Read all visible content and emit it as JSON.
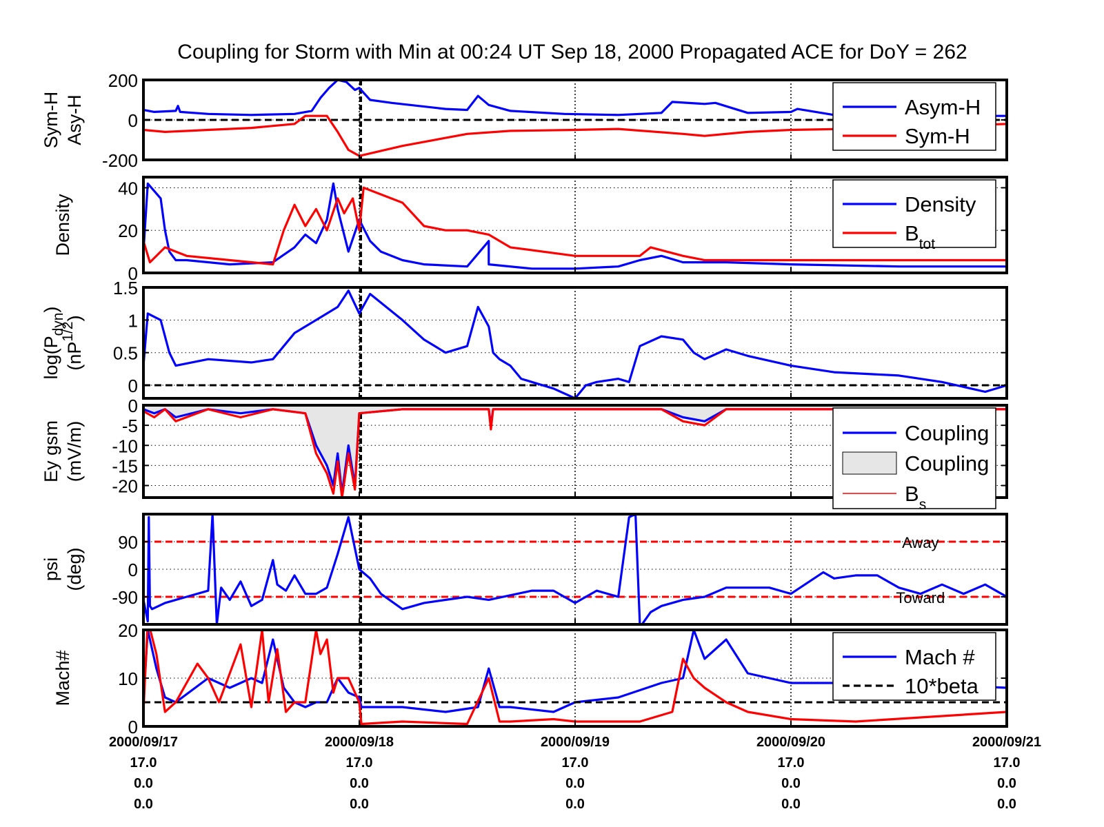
{
  "title": "Coupling for Storm with Min at 00:24 UT Sep 18, 2000  Propagated ACE for DoY = 262",
  "x_axis": {
    "tick_dates": [
      "2000/09/17",
      "2000/09/18",
      "2000/09/19",
      "2000/09/20",
      "2000/09/21"
    ],
    "tick_row2": [
      "17.0",
      "17.0",
      "17.0",
      "17.0",
      "17.0"
    ],
    "tick_row3": [
      "0.0",
      "0.0",
      "0.0",
      "0.0",
      "0.0"
    ],
    "tick_row4": [
      "0.0",
      "0.0",
      "0.0",
      "0.0",
      "0.0"
    ],
    "range_days": [
      0,
      4
    ]
  },
  "colors": {
    "blue": "#0000ff",
    "red": "#ff0000",
    "black": "#000000",
    "fill_gray": "#e6e6e6"
  },
  "chart_data": [
    {
      "type": "line",
      "ylabel_lines": [
        "Sym-H",
        "Asy-H"
      ],
      "ylim": [
        -200,
        200
      ],
      "yticks": [
        "200",
        "0",
        "-200"
      ],
      "ytick_values": [
        200,
        0,
        -200
      ],
      "grid": true,
      "ref_lines": [
        {
          "y": 0,
          "color": "black",
          "style": "dashed"
        }
      ],
      "legend": {
        "position": "top-right",
        "entries": [
          {
            "label": "Asym-H",
            "sub": "",
            "color": "blue",
            "style": "line"
          },
          {
            "label": "Sym-H",
            "sub": "",
            "color": "red",
            "style": "line"
          }
        ]
      },
      "series": [
        {
          "name": "Asym-H",
          "color": "blue",
          "x": [
            0,
            0.05,
            0.15,
            0.16,
            0.17,
            0.3,
            0.5,
            0.7,
            0.78,
            0.82,
            0.86,
            0.9,
            0.94,
            0.98,
            1.0,
            1.05,
            1.15,
            1.4,
            1.5,
            1.55,
            1.6,
            1.7,
            1.95,
            2.2,
            2.4,
            2.45,
            2.6,
            2.65,
            2.8,
            3.0,
            3.03,
            3.2,
            3.6,
            4.0
          ],
          "y": [
            50,
            40,
            45,
            70,
            40,
            30,
            25,
            30,
            45,
            110,
            160,
            200,
            190,
            150,
            160,
            100,
            85,
            55,
            50,
            120,
            75,
            45,
            30,
            25,
            35,
            90,
            80,
            85,
            35,
            40,
            55,
            25,
            20,
            20
          ]
        },
        {
          "name": "Sym-H",
          "color": "red",
          "x": [
            0,
            0.1,
            0.3,
            0.5,
            0.7,
            0.75,
            0.85,
            0.9,
            0.95,
            1.0,
            1.02,
            1.2,
            1.5,
            1.7,
            2.0,
            2.2,
            2.5,
            2.6,
            2.8,
            3.0,
            3.5,
            4.0
          ],
          "y": [
            -50,
            -60,
            -50,
            -40,
            -20,
            20,
            20,
            -60,
            -150,
            -180,
            -175,
            -130,
            -70,
            -55,
            -50,
            -45,
            -70,
            -80,
            -60,
            -50,
            -40,
            -20
          ]
        }
      ]
    },
    {
      "type": "line",
      "ylabel_lines": [
        "Density"
      ],
      "ylim": [
        0,
        45
      ],
      "yticks": [
        "40",
        "20",
        "0"
      ],
      "ytick_values": [
        40,
        20,
        0
      ],
      "grid": true,
      "ref_lines": [],
      "legend": {
        "position": "top-right",
        "entries": [
          {
            "label": "Density",
            "sub": "",
            "color": "blue",
            "style": "line"
          },
          {
            "label": "B",
            "sub": "tot",
            "color": "red",
            "style": "line"
          }
        ]
      },
      "series": [
        {
          "name": "Density",
          "color": "blue",
          "x": [
            0,
            0.02,
            0.08,
            0.1,
            0.12,
            0.15,
            0.2,
            0.4,
            0.6,
            0.7,
            0.75,
            0.8,
            0.85,
            0.88,
            0.9,
            0.95,
            1.0,
            1.05,
            1.1,
            1.2,
            1.3,
            1.5,
            1.6,
            1.6,
            1.8,
            2.0,
            2.2,
            2.3,
            2.4,
            2.5,
            2.7,
            3.0,
            3.5,
            4.0
          ],
          "y": [
            10,
            42,
            35,
            20,
            10,
            6,
            6,
            4,
            5,
            12,
            18,
            14,
            25,
            42,
            30,
            10,
            25,
            15,
            10,
            6,
            4,
            3,
            15,
            4,
            2,
            2,
            3,
            6,
            8,
            5,
            5,
            4,
            3,
            3
          ]
        },
        {
          "name": "B",
          "color": "red",
          "x": [
            0,
            0.03,
            0.08,
            0.1,
            0.2,
            0.4,
            0.6,
            0.65,
            0.7,
            0.75,
            0.8,
            0.85,
            0.9,
            0.93,
            0.97,
            1.0,
            1.02,
            1.2,
            1.3,
            1.4,
            1.5,
            1.6,
            1.7,
            2.0,
            2.3,
            2.35,
            2.5,
            2.6,
            2.7,
            3.0,
            4.0
          ],
          "y": [
            15,
            5,
            10,
            12,
            8,
            6,
            4,
            20,
            32,
            22,
            30,
            20,
            35,
            28,
            35,
            20,
            40,
            33,
            22,
            20,
            20,
            18,
            12,
            8,
            8,
            12,
            8,
            6,
            6,
            6,
            6
          ]
        }
      ]
    },
    {
      "type": "line",
      "ylabel_lines": [
        "log(P",
        "(nP"
      ],
      "ylabel_sub": "dyn",
      "ylabel_sup": "1/2",
      "ylim": [
        -0.2,
        1.5
      ],
      "yticks": [
        "1.5",
        "1",
        "0.5",
        "0"
      ],
      "ytick_values": [
        1.5,
        1,
        0.5,
        0
      ],
      "grid": true,
      "ref_lines": [
        {
          "y": 0,
          "color": "black",
          "style": "dashed"
        }
      ],
      "legend": null,
      "series": [
        {
          "name": "",
          "color": "blue",
          "x": [
            0,
            0.02,
            0.08,
            0.12,
            0.15,
            0.3,
            0.5,
            0.6,
            0.65,
            0.7,
            0.8,
            0.9,
            0.95,
            1.0,
            1.05,
            1.2,
            1.3,
            1.4,
            1.5,
            1.55,
            1.6,
            1.62,
            1.65,
            1.7,
            1.75,
            1.8,
            1.9,
            2.0,
            2.05,
            2.1,
            2.2,
            2.25,
            2.3,
            2.4,
            2.5,
            2.55,
            2.6,
            2.7,
            2.8,
            3.0,
            3.2,
            3.5,
            3.7,
            3.9,
            4.0
          ],
          "y": [
            0.3,
            1.1,
            1.0,
            0.5,
            0.3,
            0.4,
            0.35,
            0.4,
            0.6,
            0.8,
            1.0,
            1.2,
            1.45,
            1.1,
            1.4,
            1.0,
            0.7,
            0.5,
            0.6,
            1.2,
            0.9,
            0.5,
            0.4,
            0.3,
            0.1,
            0.05,
            -0.05,
            -0.2,
            0.0,
            0.05,
            0.1,
            0.05,
            0.6,
            0.75,
            0.7,
            0.5,
            0.4,
            0.55,
            0.45,
            0.3,
            0.2,
            0.15,
            0.05,
            -0.1,
            0.0
          ]
        }
      ]
    },
    {
      "type": "area",
      "ylabel_lines": [
        "Ey gsm",
        "(mV/m)"
      ],
      "ylim": [
        -23,
        0
      ],
      "yticks": [
        "0",
        "-5",
        "-10",
        "-15",
        "-20"
      ],
      "ytick_values": [
        0,
        -5,
        -10,
        -15,
        -20
      ],
      "grid": true,
      "ref_lines": [],
      "legend": {
        "position": "top-right",
        "entries": [
          {
            "label": "Coupling",
            "sub": "",
            "color": "blue",
            "style": "line"
          },
          {
            "label": "Coupling",
            "sub": "",
            "color": "fill_gray",
            "style": "patch"
          },
          {
            "label": "B",
            "sub": "s",
            "color": "red",
            "style": "thin-line"
          }
        ]
      },
      "series": [
        {
          "name": "Coupling",
          "color": "blue",
          "x": [
            0,
            0.05,
            0.1,
            0.15,
            0.3,
            0.45,
            0.6,
            0.75,
            0.8,
            0.85,
            0.88,
            0.9,
            0.92,
            0.95,
            0.98,
            1.0,
            1.2,
            1.5,
            1.6,
            1.61,
            1.62,
            1.8,
            2.0,
            2.4,
            2.5,
            2.6,
            2.7,
            3.0,
            3.5,
            4.0
          ],
          "y": [
            -1,
            -2,
            -1,
            -3,
            -1,
            -2,
            -1,
            -2,
            -10,
            -15,
            -20,
            -12,
            -22,
            -10,
            -20,
            -2,
            -1,
            -1,
            -1,
            -5,
            -1,
            -1,
            -1,
            -1,
            -3,
            -4,
            -1,
            -1,
            -1,
            -1
          ]
        },
        {
          "name": "B",
          "color": "red",
          "x": [
            0,
            0.05,
            0.1,
            0.15,
            0.3,
            0.45,
            0.6,
            0.75,
            0.8,
            0.85,
            0.88,
            0.9,
            0.92,
            0.95,
            0.98,
            1.0,
            1.2,
            1.5,
            1.6,
            1.61,
            1.62,
            1.8,
            2.0,
            2.4,
            2.5,
            2.6,
            2.7,
            3.0,
            3.5,
            4.0
          ],
          "y": [
            -1.5,
            -3,
            -1,
            -4,
            -1,
            -3,
            -1,
            -2,
            -12,
            -17,
            -22,
            -14,
            -23,
            -12,
            -21,
            -2,
            -1,
            -1,
            -1,
            -6,
            -1,
            -1,
            -1,
            -1,
            -4,
            -5,
            -1,
            -1,
            -1,
            -1
          ]
        }
      ]
    },
    {
      "type": "line",
      "ylabel_lines": [
        "psi",
        "(deg)"
      ],
      "ylim": [
        -180,
        180
      ],
      "yticks": [
        "90",
        "0",
        "-90"
      ],
      "ytick_values": [
        90,
        0,
        -90
      ],
      "grid": true,
      "ref_lines": [
        {
          "y": 90,
          "color": "red",
          "style": "dashed"
        },
        {
          "y": -90,
          "color": "red",
          "style": "dashed"
        }
      ],
      "annotations": [
        {
          "text": "Away",
          "x": 3.6,
          "y": 90
        },
        {
          "text": "Toward",
          "x": 3.6,
          "y": -90
        }
      ],
      "legend": null,
      "series": [
        {
          "name": "",
          "color": "blue",
          "x": [
            0,
            0.02,
            0.025,
            0.03,
            0.04,
            0.1,
            0.2,
            0.3,
            0.32,
            0.34,
            0.36,
            0.4,
            0.45,
            0.5,
            0.55,
            0.6,
            0.62,
            0.64,
            0.66,
            0.7,
            0.75,
            0.8,
            0.85,
            0.9,
            0.95,
            1.0,
            1.05,
            1.1,
            1.2,
            1.3,
            1.5,
            1.6,
            1.8,
            1.9,
            2.0,
            2.1,
            2.2,
            2.25,
            2.28,
            2.3,
            2.31,
            2.35,
            2.4,
            2.5,
            2.6,
            2.7,
            2.8,
            2.9,
            3.0,
            3.15,
            3.2,
            3.3,
            3.4,
            3.5,
            3.6,
            3.7,
            3.8,
            3.9,
            4.0
          ],
          "y": [
            -100,
            -170,
            170,
            -120,
            -130,
            -110,
            -90,
            -70,
            180,
            -180,
            -60,
            -100,
            -40,
            -120,
            -100,
            30,
            -50,
            -60,
            -70,
            -20,
            -80,
            -80,
            -60,
            50,
            170,
            0,
            -30,
            -80,
            -130,
            -110,
            -90,
            -100,
            -70,
            -70,
            -110,
            -70,
            -90,
            170,
            180,
            -180,
            -180,
            -140,
            -120,
            -100,
            -90,
            -60,
            -60,
            -60,
            -80,
            -10,
            -30,
            -20,
            -20,
            -60,
            -80,
            -50,
            -80,
            -50,
            -90
          ]
        }
      ]
    },
    {
      "type": "line",
      "ylabel_lines": [
        "Mach#"
      ],
      "ylim": [
        0,
        20
      ],
      "yticks": [
        "20",
        "10",
        "0"
      ],
      "ytick_values": [
        20,
        10,
        0
      ],
      "grid": true,
      "ref_lines": [],
      "legend": {
        "position": "top-right",
        "entries": [
          {
            "label": "Mach #",
            "sub": "",
            "color": "blue",
            "style": "line"
          },
          {
            "label": "10*beta",
            "sub": "",
            "color": "black",
            "style": "dashed"
          }
        ]
      },
      "series": [
        {
          "name": "Mach #",
          "color": "blue",
          "x": [
            0,
            0.02,
            0.06,
            0.1,
            0.15,
            0.3,
            0.4,
            0.5,
            0.55,
            0.6,
            0.65,
            0.7,
            0.75,
            0.8,
            0.85,
            0.9,
            0.95,
            1.0,
            1.01,
            1.2,
            1.4,
            1.55,
            1.6,
            1.65,
            1.7,
            1.9,
            2.0,
            2.2,
            2.4,
            2.5,
            2.55,
            2.6,
            2.7,
            2.8,
            3.0,
            3.5,
            4.0
          ],
          "y": [
            5,
            20,
            12,
            6,
            5,
            10,
            8,
            10,
            9,
            18,
            8,
            5,
            4,
            5,
            5,
            10,
            7,
            6,
            4,
            4,
            3,
            4,
            12,
            4,
            4,
            3,
            5,
            6,
            9,
            10,
            20,
            14,
            18,
            11,
            9,
            9,
            8
          ]
        },
        {
          "name": "10*beta",
          "color": "black",
          "style": "dashed",
          "x": [
            0,
            4
          ],
          "y": [
            5,
            5
          ]
        },
        {
          "name": "",
          "color": "red",
          "x": [
            0,
            0.02,
            0.06,
            0.1,
            0.15,
            0.25,
            0.3,
            0.35,
            0.45,
            0.5,
            0.55,
            0.58,
            0.62,
            0.66,
            0.7,
            0.75,
            0.8,
            0.82,
            0.85,
            0.88,
            0.9,
            0.95,
            1.0,
            1.01,
            1.2,
            1.5,
            1.6,
            1.65,
            1.7,
            1.9,
            2.0,
            2.3,
            2.45,
            2.5,
            2.55,
            2.6,
            2.7,
            2.8,
            3.0,
            3.3,
            4.0
          ],
          "y": [
            3,
            22,
            15,
            3,
            5,
            13,
            10,
            5,
            17,
            4,
            20,
            5,
            16,
            3,
            5,
            5,
            20,
            15,
            18,
            7,
            10,
            10,
            5,
            0.5,
            1,
            0.5,
            10,
            1,
            1,
            1.5,
            1,
            1,
            3,
            14,
            10,
            8,
            5,
            3,
            1.5,
            1,
            3
          ]
        }
      ]
    }
  ]
}
